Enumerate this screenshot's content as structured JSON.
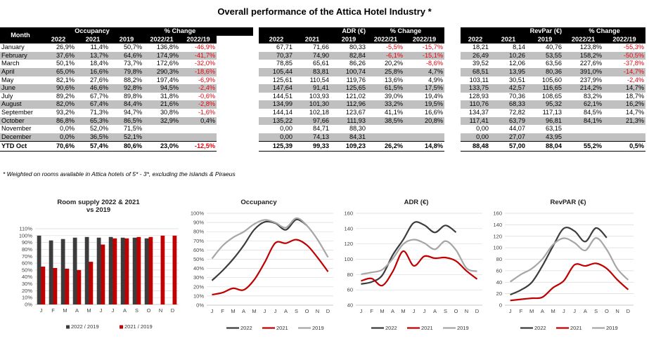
{
  "title": "Overall performance of the Attica Hotel Industry *",
  "months": [
    "January",
    "February",
    "March",
    "April",
    "May",
    "June",
    "July",
    "August",
    "September",
    "October",
    "November",
    "December"
  ],
  "ytd_label": "YTD Oct",
  "footnote": "* Weighted on rooms available in Attica hotels of 5* - 3*, excluding the islands & Piraeus",
  "occupancy_table": {
    "header_month": "Month",
    "group_label": "Occupancy",
    "change_label": "% Change",
    "cols": [
      "2022",
      "2021",
      "2019",
      "2022/21",
      "2022/19"
    ],
    "rows": [
      [
        "26,9%",
        "11,4%",
        "50,7%",
        "136,8%",
        "-46,9%"
      ],
      [
        "37,6%",
        "13,7%",
        "64,6%",
        "174,9%",
        "-41,7%"
      ],
      [
        "50,1%",
        "18,4%",
        "73,7%",
        "172,6%",
        "-32,0%"
      ],
      [
        "65,0%",
        "16,6%",
        "79,8%",
        "290,3%",
        "-18,6%"
      ],
      [
        "82,1%",
        "27,6%",
        "88,2%",
        "197,4%",
        "-6,9%"
      ],
      [
        "90,6%",
        "46,6%",
        "92,8%",
        "94,5%",
        "-2,4%"
      ],
      [
        "89,2%",
        "67,7%",
        "89,8%",
        "31,8%",
        "-0,6%"
      ],
      [
        "82,0%",
        "67,4%",
        "84,4%",
        "21,6%",
        "-2,8%"
      ],
      [
        "93,2%",
        "71,3%",
        "94,7%",
        "30,8%",
        "-1,6%"
      ],
      [
        "86,8%",
        "65,3%",
        "86,5%",
        "32,9%",
        "0,4%"
      ],
      [
        "0,0%",
        "52,0%",
        "71,5%",
        "",
        ""
      ],
      [
        "0,0%",
        "36,5%",
        "52,1%",
        "",
        ""
      ]
    ],
    "ytd": [
      "70,6%",
      "57,4%",
      "80,6%",
      "23,0%",
      "-12,5%"
    ]
  },
  "adr_table": {
    "group_label": "ADR (€)",
    "change_label": "% Change",
    "cols": [
      "2022",
      "2021",
      "2019",
      "2022/21",
      "2022/19"
    ],
    "rows": [
      [
        "67,71",
        "71,66",
        "80,33",
        "-5,5%",
        "-15,7%"
      ],
      [
        "70,37",
        "74,90",
        "82,84",
        "-6,1%",
        "-15,1%"
      ],
      [
        "78,85",
        "65,61",
        "86,26",
        "20,2%",
        "-8,6%"
      ],
      [
        "105,44",
        "83,81",
        "100,74",
        "25,8%",
        "4,7%"
      ],
      [
        "125,61",
        "110,54",
        "119,76",
        "13,6%",
        "4,9%"
      ],
      [
        "147,64",
        "91,41",
        "125,65",
        "61,5%",
        "17,5%"
      ],
      [
        "144,51",
        "103,93",
        "121,02",
        "39,0%",
        "19,4%"
      ],
      [
        "134,99",
        "101,30",
        "112,96",
        "33,2%",
        "19,5%"
      ],
      [
        "144,14",
        "102,18",
        "123,67",
        "41,1%",
        "16,6%"
      ],
      [
        "135,22",
        "97,66",
        "111,93",
        "38,5%",
        "20,8%"
      ],
      [
        "0,00",
        "84,71",
        "88,30",
        "",
        ""
      ],
      [
        "0,00",
        "74,13",
        "84,31",
        "",
        ""
      ]
    ],
    "ytd": [
      "125,39",
      "99,33",
      "109,23",
      "26,2%",
      "14,8%"
    ]
  },
  "revpar_table": {
    "group_label": "RevPar (€)",
    "change_label": "% Change",
    "cols": [
      "2022",
      "2021",
      "2019",
      "2022/21",
      "2022/19"
    ],
    "rows": [
      [
        "18,21",
        "8,14",
        "40,76",
        "123,8%",
        "-55,3%"
      ],
      [
        "26,49",
        "10,26",
        "53,55",
        "158,2%",
        "-50,5%"
      ],
      [
        "39,52",
        "12,06",
        "63,56",
        "227,6%",
        "-37,8%"
      ],
      [
        "68,51",
        "13,95",
        "80,36",
        "391,0%",
        "-14,7%"
      ],
      [
        "103,11",
        "30,51",
        "105,60",
        "237,9%",
        "-2,4%"
      ],
      [
        "133,75",
        "42,57",
        "116,65",
        "214,2%",
        "14,7%"
      ],
      [
        "128,93",
        "70,36",
        "108,65",
        "83,2%",
        "18,7%"
      ],
      [
        "110,76",
        "68,33",
        "95,32",
        "62,1%",
        "16,2%"
      ],
      [
        "134,37",
        "72,82",
        "117,13",
        "84,5%",
        "14,7%"
      ],
      [
        "117,41",
        "63,79",
        "96,81",
        "84,1%",
        "21,3%"
      ],
      [
        "0,00",
        "44,07",
        "63,15",
        "",
        ""
      ],
      [
        "0,00",
        "27,07",
        "43,95",
        "",
        ""
      ]
    ],
    "ytd": [
      "88,48",
      "57,00",
      "88,04",
      "55,2%",
      "0,5%"
    ]
  },
  "colors": {
    "s2022": "#3c3c3c",
    "s2021": "#c00000",
    "s2019": "#a6a6a6",
    "negative": "#e8000b",
    "band": "#c0c0c0"
  },
  "chart_data": [
    {
      "type": "bar",
      "title": "Room supply 2022 & 2021 vs 2019",
      "title_lines": [
        "Room supply 2022 & 2021",
        "vs 2019"
      ],
      "categories": [
        "J",
        "F",
        "M",
        "A",
        "M",
        "J",
        "J",
        "A",
        "S",
        "O",
        "N",
        "D"
      ],
      "ylim": [
        0,
        110
      ],
      "yticks": [
        "0%",
        "10%",
        "20%",
        "30%",
        "40%",
        "50%",
        "60%",
        "70%",
        "80%",
        "90%",
        "100%",
        "110%"
      ],
      "grid": true,
      "legend": "bottom",
      "series": [
        {
          "name": "2022 / 2019",
          "color": "#3c3c3c",
          "values": [
            100,
            93,
            95,
            97,
            98,
            97,
            98,
            97,
            97,
            96,
            null,
            null
          ]
        },
        {
          "name": "2021 / 2019",
          "color": "#c00000",
          "values": [
            55,
            53,
            52,
            50,
            62,
            87,
            96,
            96,
            98,
            98,
            100,
            100
          ]
        }
      ]
    },
    {
      "type": "line",
      "title": "Occupancy",
      "categories": [
        "J",
        "F",
        "M",
        "A",
        "M",
        "J",
        "J",
        "A",
        "S",
        "O",
        "N",
        "D"
      ],
      "ylim": [
        0,
        100
      ],
      "yticks": [
        "0%",
        "10%",
        "20%",
        "30%",
        "40%",
        "50%",
        "60%",
        "70%",
        "80%",
        "90%",
        "100%"
      ],
      "legend": "bottom",
      "series": [
        {
          "name": "2022",
          "color": "#3c3c3c",
          "values": [
            26.9,
            37.6,
            50.1,
            65.0,
            82.1,
            90.6,
            89.2,
            82.0,
            93.2,
            86.8,
            null,
            null
          ]
        },
        {
          "name": "2021",
          "color": "#c00000",
          "values": [
            11.4,
            13.7,
            18.4,
            16.6,
            27.6,
            46.6,
            67.7,
            67.4,
            71.3,
            65.3,
            52.0,
            36.5
          ]
        },
        {
          "name": "2019",
          "color": "#a6a6a6",
          "values": [
            50.7,
            64.6,
            73.7,
            79.8,
            88.2,
            92.8,
            89.8,
            84.4,
            94.7,
            86.5,
            71.5,
            52.1
          ]
        }
      ]
    },
    {
      "type": "line",
      "title": "ADR (€)",
      "categories": [
        "J",
        "F",
        "M",
        "A",
        "M",
        "J",
        "J",
        "A",
        "S",
        "O",
        "N",
        "D"
      ],
      "ylim": [
        40,
        160
      ],
      "yticks": [
        "40",
        "60",
        "80",
        "100",
        "120",
        "140",
        "160"
      ],
      "legend": "bottom",
      "series": [
        {
          "name": "2022",
          "color": "#3c3c3c",
          "values": [
            67.71,
            70.37,
            78.85,
            105.44,
            125.61,
            147.64,
            144.51,
            134.99,
            144.14,
            135.22,
            null,
            null
          ]
        },
        {
          "name": "2021",
          "color": "#c00000",
          "values": [
            71.66,
            74.9,
            65.61,
            83.81,
            110.54,
            91.41,
            103.93,
            101.3,
            102.18,
            97.66,
            84.71,
            74.13
          ]
        },
        {
          "name": "2019",
          "color": "#a6a6a6",
          "values": [
            80.33,
            82.84,
            86.26,
            100.74,
            119.76,
            125.65,
            121.02,
            112.96,
            123.67,
            111.93,
            88.3,
            84.31
          ]
        }
      ]
    },
    {
      "type": "line",
      "title": "RevPAR (€)",
      "categories": [
        "J",
        "F",
        "M",
        "A",
        "M",
        "J",
        "J",
        "A",
        "S",
        "O",
        "N",
        "D"
      ],
      "ylim": [
        0,
        160
      ],
      "yticks": [
        "0",
        "20",
        "40",
        "60",
        "80",
        "100",
        "120",
        "140",
        "160"
      ],
      "legend": "bottom",
      "series": [
        {
          "name": "2022",
          "color": "#3c3c3c",
          "values": [
            18.21,
            26.49,
            39.52,
            68.51,
            103.11,
            133.75,
            128.93,
            110.76,
            134.37,
            117.41,
            null,
            null
          ]
        },
        {
          "name": "2021",
          "color": "#c00000",
          "values": [
            8.14,
            10.26,
            12.06,
            13.95,
            30.51,
            42.57,
            70.36,
            68.33,
            72.82,
            63.79,
            44.07,
            27.07
          ]
        },
        {
          "name": "2019",
          "color": "#a6a6a6",
          "values": [
            40.76,
            53.55,
            63.56,
            80.36,
            105.6,
            116.65,
            108.65,
            95.32,
            117.13,
            96.81,
            63.15,
            43.95
          ]
        }
      ]
    }
  ]
}
